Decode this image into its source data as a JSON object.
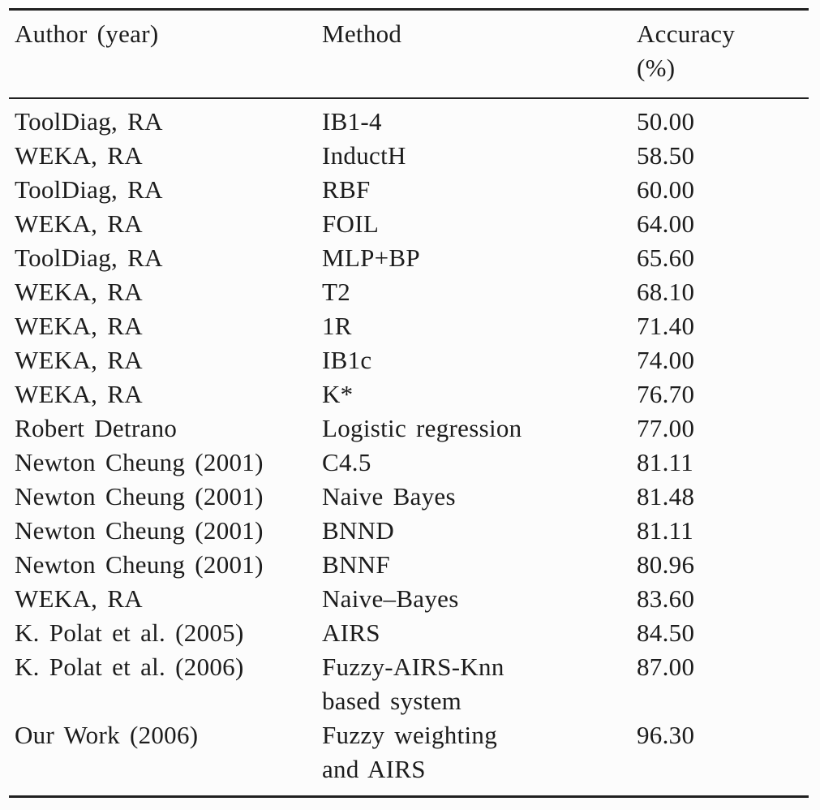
{
  "page": {
    "background_color": "#fcfcfc",
    "text_color": "#1c1c1c",
    "rule_color": "#202020"
  },
  "table": {
    "description": "Classification accuracy comparison table",
    "header": {
      "author": "Author (year)",
      "method": "Method",
      "accuracy": "Accuracy\n(%)"
    },
    "rows": [
      {
        "author": "ToolDiag, RA",
        "method": "IB1-4",
        "accuracy": "50.00"
      },
      {
        "author": "WEKA, RA",
        "method": "InductH",
        "accuracy": "58.50"
      },
      {
        "author": "ToolDiag, RA",
        "method": "RBF",
        "accuracy": "60.00"
      },
      {
        "author": "WEKA, RA",
        "method": "FOIL",
        "accuracy": "64.00"
      },
      {
        "author": "ToolDiag, RA",
        "method": "MLP+BP",
        "accuracy": "65.60"
      },
      {
        "author": "WEKA, RA",
        "method": "T2",
        "accuracy": "68.10"
      },
      {
        "author": "WEKA, RA",
        "method": "1R",
        "accuracy": "71.40"
      },
      {
        "author": "WEKA, RA",
        "method": "IB1c",
        "accuracy": "74.00"
      },
      {
        "author": "WEKA, RA",
        "method": "K*",
        "accuracy": "76.70"
      },
      {
        "author": "Robert Detrano",
        "method": "Logistic regression",
        "accuracy": "77.00"
      },
      {
        "author": "Newton Cheung (2001)",
        "method": "C4.5",
        "accuracy": "81.11"
      },
      {
        "author": "Newton Cheung (2001)",
        "method": "Naive Bayes",
        "accuracy": "81.48"
      },
      {
        "author": "Newton Cheung (2001)",
        "method": "BNND",
        "accuracy": "81.11"
      },
      {
        "author": "Newton Cheung (2001)",
        "method": "BNNF",
        "accuracy": "80.96"
      },
      {
        "author": "WEKA, RA",
        "method": "Naive–Bayes",
        "accuracy": "83.60"
      },
      {
        "author": "K. Polat et al. (2005)",
        "method": "AIRS",
        "accuracy": "84.50"
      },
      {
        "author": "K. Polat et al. (2006)",
        "method": "Fuzzy-AIRS-Knn\nbased system",
        "accuracy": "87.00"
      },
      {
        "author": "Our Work (2006)",
        "method": "Fuzzy weighting\nand AIRS",
        "accuracy": "96.30"
      }
    ]
  }
}
